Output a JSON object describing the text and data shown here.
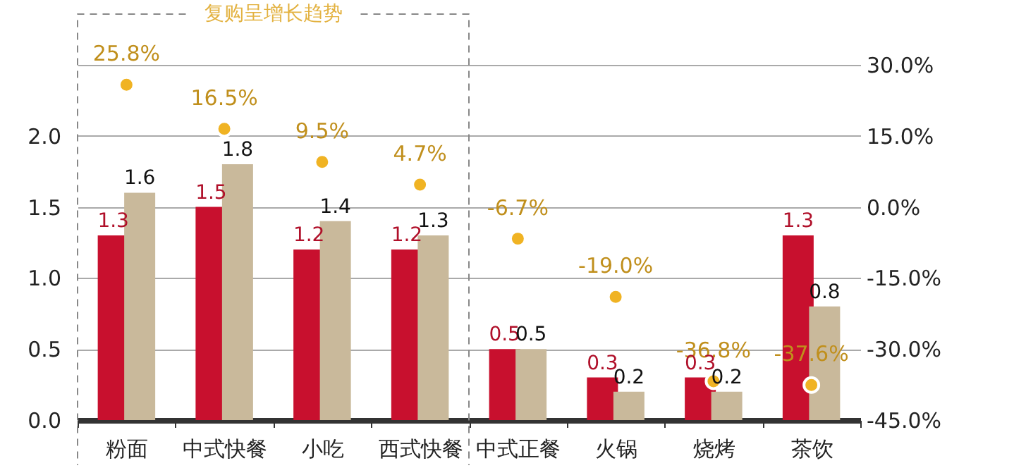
{
  "chart_data": {
    "type": "bar",
    "categories": [
      "粉面",
      "中式快餐",
      "小吃",
      "西式快餐",
      "中式正餐",
      "火锅",
      "烧烤",
      "茶饮"
    ],
    "series": [
      {
        "color": "#c8102e",
        "values": [
          1.3,
          1.5,
          1.2,
          1.2,
          0.5,
          0.3,
          0.3,
          1.3
        ]
      },
      {
        "color": "#c9b99b",
        "values": [
          1.6,
          1.8,
          1.4,
          1.3,
          0.5,
          0.2,
          0.2,
          0.8
        ]
      },
      {
        "type": "scatter",
        "axis": "y2",
        "color": "#f0b323",
        "marker": "circle",
        "values": [
          25.8,
          16.5,
          9.5,
          4.7,
          -6.7,
          -19.0,
          -36.8,
          -37.6
        ],
        "value_labels": [
          "25.8%",
          "16.5%",
          "9.5%",
          "4.7%",
          "-6.7%",
          "-19.0%",
          "-36.8%",
          "-37.6%"
        ]
      }
    ],
    "ylim": [
      0,
      2.5
    ],
    "yticks": [
      {
        "value": 0,
        "label": "0.0"
      },
      {
        "value": 0.5,
        "label": "0.5"
      },
      {
        "value": 1,
        "label": "1.0"
      },
      {
        "value": 1.5,
        "label": "1.5"
      },
      {
        "value": 2,
        "label": "2.0"
      },
      {
        "value": 2.5,
        "label": null
      }
    ],
    "y2lim": [
      -45,
      30
    ],
    "y2ticks": [
      {
        "value": -45,
        "label": "-45.0%"
      },
      {
        "value": -30,
        "label": "-30.0%"
      },
      {
        "value": -15,
        "label": "-15.0%"
      },
      {
        "value": 0,
        "label": "0.0%"
      },
      {
        "value": 15,
        "label": "15.0%"
      },
      {
        "value": 30,
        "label": "30.0%"
      }
    ],
    "annotations": [
      "复购呈增长趋势"
    ],
    "data_labels": true,
    "grid": "y"
  }
}
